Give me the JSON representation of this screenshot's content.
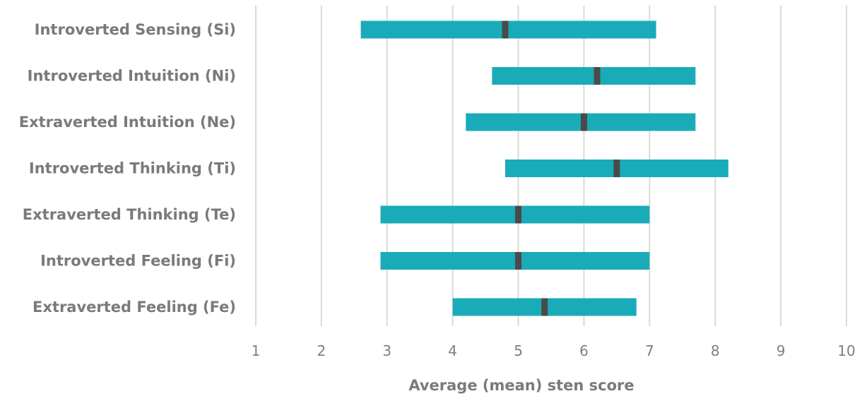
{
  "chart_data": {
    "type": "bar",
    "subtype": "floating-range-with-mean-marker",
    "orientation": "horizontal",
    "categories": [
      "Introverted Sensing (Si)",
      "Introverted Intuition (Ni)",
      "Extraverted Intuition (Ne)",
      "Introverted Thinking (Ti)",
      "Extraverted Thinking (Te)",
      "Introverted Feeling (Fi)",
      "Extraverted Feeling (Fe)"
    ],
    "series": [
      {
        "values_low": [
          2.6,
          4.6,
          4.2,
          4.8,
          2.9,
          2.9,
          4.0
        ]
      },
      {
        "values_mean": [
          4.8,
          6.2,
          6.0,
          6.5,
          5.0,
          5.0,
          5.4
        ]
      },
      {
        "values_high": [
          7.1,
          7.7,
          7.7,
          8.2,
          7.0,
          7.0,
          6.8
        ]
      }
    ],
    "xlabel": "Average (mean) sten score",
    "ylabel": "",
    "xlim": [
      1,
      10
    ],
    "xticks": [
      "1",
      "2",
      "3",
      "4",
      "5",
      "6",
      "7",
      "8",
      "9",
      "10"
    ],
    "grid": "vertical",
    "colors": {
      "range": "#1aabb8",
      "mean": "#4a4a4a",
      "grid": "#d9d9d9",
      "text": "#7a7a7a"
    }
  }
}
